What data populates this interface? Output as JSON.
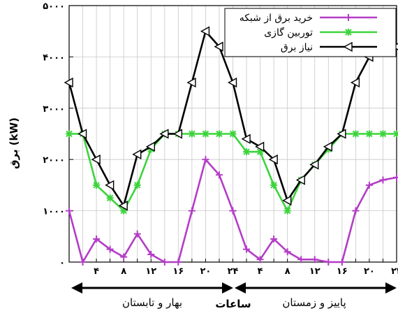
{
  "chart_data": {
    "type": "line",
    "ylabel": "برق (kW)",
    "xlabel": "ساعات",
    "x": [
      1,
      2,
      3,
      4,
      5,
      6,
      7,
      8,
      9,
      10,
      11,
      12,
      13,
      14,
      15,
      16,
      17,
      18,
      19,
      20,
      21,
      22,
      23,
      24
    ],
    "x_tick_labels": [
      "۴",
      "۸",
      "۱۲",
      "۱۶",
      "۲۰",
      "۲۴",
      "۴",
      "۸",
      "۱۲",
      "۱۶",
      "۲۰",
      "۲۴"
    ],
    "x_tick_positions": [
      2,
      4,
      6,
      8,
      10,
      12,
      14,
      16,
      18,
      20,
      22,
      24
    ],
    "y_tick_labels": [
      "۰",
      "۱۰۰۰",
      "۲۰۰۰",
      "۳۰۰۰",
      "۴۰۰۰",
      "۵۰۰۰"
    ],
    "y_tick_values": [
      0,
      1000,
      2000,
      3000,
      4000,
      5000
    ],
    "ylim": [
      0,
      5000
    ],
    "xlim": [
      0,
      24
    ],
    "grid": true,
    "legend_position": "top-right",
    "season_labels": [
      "بهار و تابستان",
      "پاییز و زمستان"
    ],
    "series": [
      {
        "name": "خرید برق از شبکه",
        "color": "#b33dc6",
        "marker": "plus",
        "x": [
          0,
          1,
          2,
          3,
          4,
          5,
          6,
          7,
          8,
          9,
          10,
          11,
          12,
          13,
          14,
          15,
          16,
          17,
          18,
          19,
          20,
          21,
          22,
          23,
          24
        ],
        "values": [
          1000,
          0,
          450,
          250,
          100,
          550,
          150,
          0,
          0,
          1000,
          2000,
          1700,
          1000,
          250,
          50,
          450,
          200,
          50,
          50,
          0,
          0,
          1000,
          1500,
          1600,
          1650
        ]
      },
      {
        "name": "توربین گازی",
        "color": "#3cd43c",
        "marker": "star",
        "x": [
          0,
          1,
          2,
          3,
          4,
          5,
          6,
          7,
          8,
          9,
          10,
          11,
          12,
          13,
          14,
          15,
          16,
          17,
          18,
          19,
          20,
          21,
          22,
          23,
          24
        ],
        "values": [
          2500,
          2500,
          1500,
          1250,
          1000,
          1500,
          2200,
          2500,
          2500,
          2500,
          2500,
          2500,
          2500,
          2150,
          2150,
          1500,
          1000,
          1600,
          1900,
          2200,
          2500,
          2500,
          2500,
          2500,
          2500
        ]
      },
      {
        "name": "نیاز برق",
        "color": "#000000",
        "marker": "triangle-left",
        "x": [
          0,
          1,
          2,
          3,
          4,
          5,
          6,
          7,
          8,
          9,
          10,
          11,
          12,
          13,
          14,
          15,
          16,
          17,
          18,
          19,
          20,
          21,
          22,
          23,
          24
        ],
        "values": [
          3500,
          2500,
          2000,
          1500,
          1100,
          2100,
          2250,
          2500,
          2500,
          3500,
          4500,
          4200,
          3500,
          2400,
          2250,
          2000,
          1200,
          1600,
          1900,
          2250,
          2500,
          3500,
          4000,
          4100,
          4200
        ]
      }
    ]
  }
}
